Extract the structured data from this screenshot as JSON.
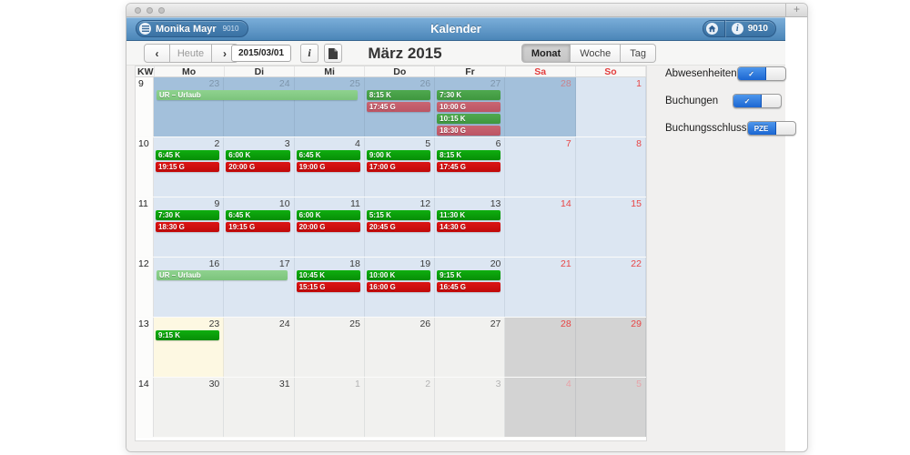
{
  "tabstrip": {
    "new_tab_label": "+"
  },
  "header": {
    "title": "Kalender",
    "user_button": {
      "label": "Monika Mayr",
      "sub": "9010"
    },
    "right": {
      "badge": "9010",
      "info_glyph": "i"
    }
  },
  "toolbar": {
    "prev_label": "‹",
    "today_label": "Heute",
    "next_label": "›",
    "date_value": "2015/03/01",
    "info_label": "i",
    "month_title": "März 2015",
    "views": [
      "Monat",
      "Woche",
      "Tag"
    ],
    "active_view": "Monat"
  },
  "calendar": {
    "day_headers": [
      {
        "label": "KW",
        "cls": "h-dark"
      },
      {
        "label": "Mo",
        "cls": "h-dark"
      },
      {
        "label": "Di",
        "cls": "h-dark"
      },
      {
        "label": "Mi",
        "cls": "h-dark"
      },
      {
        "label": "Do",
        "cls": "h-dark"
      },
      {
        "label": "Fr",
        "cls": "h-dark"
      },
      {
        "label": "Sa",
        "cls": "h-red"
      },
      {
        "label": "So",
        "cls": "h-red"
      }
    ],
    "weeks": [
      {
        "kw": "9",
        "span_events": [
          {
            "label": "UR – Urlaub",
            "start": 0,
            "span": 3,
            "type": "ev-ur"
          }
        ],
        "days": [
          {
            "num": "23",
            "bg": "c-dark",
            "nc": "n-slate",
            "events": []
          },
          {
            "num": "24",
            "bg": "c-dark",
            "nc": "n-slate",
            "events": []
          },
          {
            "num": "25",
            "bg": "c-dark",
            "nc": "n-slate",
            "events": []
          },
          {
            "num": "26",
            "bg": "c-dark",
            "nc": "n-slate",
            "events": [
              {
                "label": "8:15 K",
                "type": "ev-gm"
              },
              {
                "label": "17:45 G",
                "type": "ev-rm"
              }
            ]
          },
          {
            "num": "27",
            "bg": "c-dark",
            "nc": "n-slate",
            "events": [
              {
                "label": "7:30 K",
                "type": "ev-gm"
              },
              {
                "label": "10:00 G",
                "type": "ev-rm"
              },
              {
                "label": "10:15 K",
                "type": "ev-gm"
              },
              {
                "label": "18:30 G",
                "type": "ev-rm"
              }
            ]
          },
          {
            "num": "28",
            "bg": "c-dark",
            "nc": "n-rose",
            "events": []
          },
          {
            "num": "1",
            "bg": "c-light",
            "nc": "n-red",
            "events": []
          }
        ]
      },
      {
        "kw": "10",
        "span_events": [],
        "days": [
          {
            "num": "2",
            "bg": "c-light",
            "nc": "n-dark",
            "events": [
              {
                "label": "6:45 K",
                "type": "ev-g"
              },
              {
                "label": "19:15 G",
                "type": "ev-r"
              }
            ]
          },
          {
            "num": "3",
            "bg": "c-light",
            "nc": "n-dark",
            "events": [
              {
                "label": "6:00 K",
                "type": "ev-g"
              },
              {
                "label": "20:00 G",
                "type": "ev-r"
              }
            ]
          },
          {
            "num": "4",
            "bg": "c-light",
            "nc": "n-dark",
            "events": [
              {
                "label": "6:45 K",
                "type": "ev-g"
              },
              {
                "label": "19:00 G",
                "type": "ev-r"
              }
            ]
          },
          {
            "num": "5",
            "bg": "c-light",
            "nc": "n-dark",
            "events": [
              {
                "label": "9:00 K",
                "type": "ev-g"
              },
              {
                "label": "17:00 G",
                "type": "ev-r"
              }
            ]
          },
          {
            "num": "6",
            "bg": "c-light",
            "nc": "n-dark",
            "events": [
              {
                "label": "8:15 K",
                "type": "ev-g"
              },
              {
                "label": "17:45 G",
                "type": "ev-r"
              }
            ]
          },
          {
            "num": "7",
            "bg": "c-light",
            "nc": "n-red",
            "events": []
          },
          {
            "num": "8",
            "bg": "c-light",
            "nc": "n-red",
            "events": []
          }
        ]
      },
      {
        "kw": "11",
        "span_events": [],
        "days": [
          {
            "num": "9",
            "bg": "c-light",
            "nc": "n-dark",
            "events": [
              {
                "label": "7:30 K",
                "type": "ev-g"
              },
              {
                "label": "18:30 G",
                "type": "ev-r"
              }
            ]
          },
          {
            "num": "10",
            "bg": "c-light",
            "nc": "n-dark",
            "events": [
              {
                "label": "6:45 K",
                "type": "ev-g"
              },
              {
                "label": "19:15 G",
                "type": "ev-r"
              }
            ]
          },
          {
            "num": "11",
            "bg": "c-light",
            "nc": "n-dark",
            "events": [
              {
                "label": "6:00 K",
                "type": "ev-g"
              },
              {
                "label": "20:00 G",
                "type": "ev-r"
              }
            ]
          },
          {
            "num": "12",
            "bg": "c-light",
            "nc": "n-dark",
            "events": [
              {
                "label": "5:15 K",
                "type": "ev-g"
              },
              {
                "label": "20:45 G",
                "type": "ev-r"
              }
            ]
          },
          {
            "num": "13",
            "bg": "c-light",
            "nc": "n-dark",
            "events": [
              {
                "label": "11:30 K",
                "type": "ev-g"
              },
              {
                "label": "14:30 G",
                "type": "ev-r"
              }
            ]
          },
          {
            "num": "14",
            "bg": "c-light",
            "nc": "n-red",
            "events": []
          },
          {
            "num": "15",
            "bg": "c-light",
            "nc": "n-red",
            "events": []
          }
        ]
      },
      {
        "kw": "12",
        "span_events": [
          {
            "label": "UR – Urlaub",
            "start": 0,
            "span": 2,
            "type": "ev-ur"
          }
        ],
        "days": [
          {
            "num": "16",
            "bg": "c-light",
            "nc": "n-dark",
            "events": []
          },
          {
            "num": "17",
            "bg": "c-light",
            "nc": "n-dark",
            "events": []
          },
          {
            "num": "18",
            "bg": "c-light",
            "nc": "n-dark",
            "events": [
              {
                "label": "10:45 K",
                "type": "ev-g"
              },
              {
                "label": "15:15 G",
                "type": "ev-r"
              }
            ]
          },
          {
            "num": "19",
            "bg": "c-light",
            "nc": "n-dark",
            "events": [
              {
                "label": "10:00 K",
                "type": "ev-g"
              },
              {
                "label": "16:00 G",
                "type": "ev-r"
              }
            ]
          },
          {
            "num": "20",
            "bg": "c-light",
            "nc": "n-dark",
            "events": [
              {
                "label": "9:15 K",
                "type": "ev-g"
              },
              {
                "label": "16:45 G",
                "type": "ev-r"
              }
            ]
          },
          {
            "num": "21",
            "bg": "c-light",
            "nc": "n-red",
            "events": []
          },
          {
            "num": "22",
            "bg": "c-light",
            "nc": "n-red",
            "events": []
          }
        ]
      },
      {
        "kw": "13",
        "span_events": [],
        "days": [
          {
            "num": "23",
            "bg": "c-today",
            "nc": "n-dark",
            "events": [
              {
                "label": "9:15 K",
                "type": "ev-g"
              }
            ]
          },
          {
            "num": "24",
            "bg": "c-plain",
            "nc": "n-dark",
            "events": []
          },
          {
            "num": "25",
            "bg": "c-plain",
            "nc": "n-dark",
            "events": []
          },
          {
            "num": "26",
            "bg": "c-plain",
            "nc": "n-dark",
            "events": []
          },
          {
            "num": "27",
            "bg": "c-plain",
            "nc": "n-dark",
            "events": []
          },
          {
            "num": "28",
            "bg": "c-gray",
            "nc": "n-red",
            "events": []
          },
          {
            "num": "29",
            "bg": "c-gray",
            "nc": "n-red",
            "events": []
          }
        ]
      },
      {
        "kw": "14",
        "span_events": [],
        "days": [
          {
            "num": "30",
            "bg": "c-plain",
            "nc": "n-dark",
            "events": []
          },
          {
            "num": "31",
            "bg": "c-plain",
            "nc": "n-dark",
            "events": []
          },
          {
            "num": "1",
            "bg": "c-plain",
            "nc": "n-gray",
            "events": []
          },
          {
            "num": "2",
            "bg": "c-plain",
            "nc": "n-gray",
            "events": []
          },
          {
            "num": "3",
            "bg": "c-plain",
            "nc": "n-gray",
            "events": []
          },
          {
            "num": "4",
            "bg": "c-gray",
            "nc": "n-palered",
            "events": []
          },
          {
            "num": "5",
            "bg": "c-gray",
            "nc": "n-palered",
            "events": []
          }
        ]
      }
    ]
  },
  "sidebar": {
    "toggles": [
      {
        "label": "Abwesenheiten",
        "on_label": "✓"
      },
      {
        "label": "Buchungen",
        "on_label": "✓"
      },
      {
        "label": "Buchungsschluss",
        "on_label": "PZE"
      }
    ]
  },
  "colors": {
    "header_blue": "#4b86b8",
    "past_cell_blue": "#a3c0db",
    "closed_cell_blue": "#dce6f2",
    "today_cell": "#fdf8e2",
    "weekend_gray": "#d3d3d3",
    "event_green": "#0a9a0a",
    "event_red": "#cc0f0f",
    "urlaub_green": "#86cb86",
    "toggle_blue": "#1b66d2"
  }
}
